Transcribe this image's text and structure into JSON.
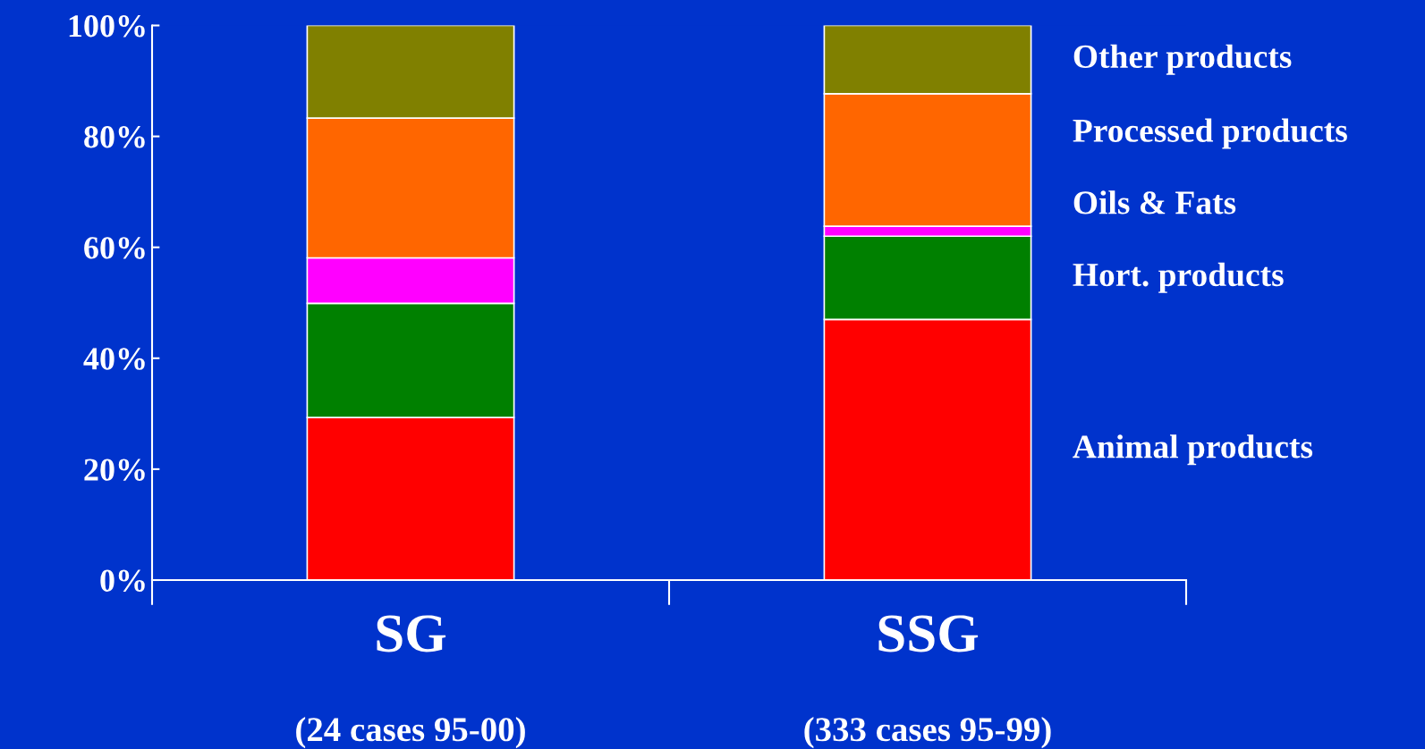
{
  "chart_data": {
    "type": "bar",
    "stacked": true,
    "categories": [
      "SG\n(24 cases 95-00)",
      "SSG\n(333 cases 95-99)"
    ],
    "series": [
      {
        "name": "Animal products",
        "color": "#ff0000",
        "values": [
          29.3,
          47.0
        ]
      },
      {
        "name": "Hort. products",
        "color": "#008000",
        "values": [
          20.6,
          15.0
        ]
      },
      {
        "name": "Oils & Fats",
        "color": "#ff00ff",
        "values": [
          8.2,
          1.8
        ]
      },
      {
        "name": "Processed products",
        "color": "#ff6600",
        "values": [
          25.2,
          23.9
        ]
      },
      {
        "name": "Other products",
        "color": "#808000",
        "values": [
          16.7,
          12.3
        ]
      }
    ],
    "ylim": [
      0,
      100
    ],
    "yticks": [
      {
        "value": 0,
        "label": "0%"
      },
      {
        "value": 20,
        "label": "20%"
      },
      {
        "value": 40,
        "label": "40%"
      },
      {
        "value": 60,
        "label": "60%"
      },
      {
        "value": 80,
        "label": "80%"
      },
      {
        "value": 100,
        "label": "100%"
      }
    ],
    "grid": false,
    "legend": false
  }
}
